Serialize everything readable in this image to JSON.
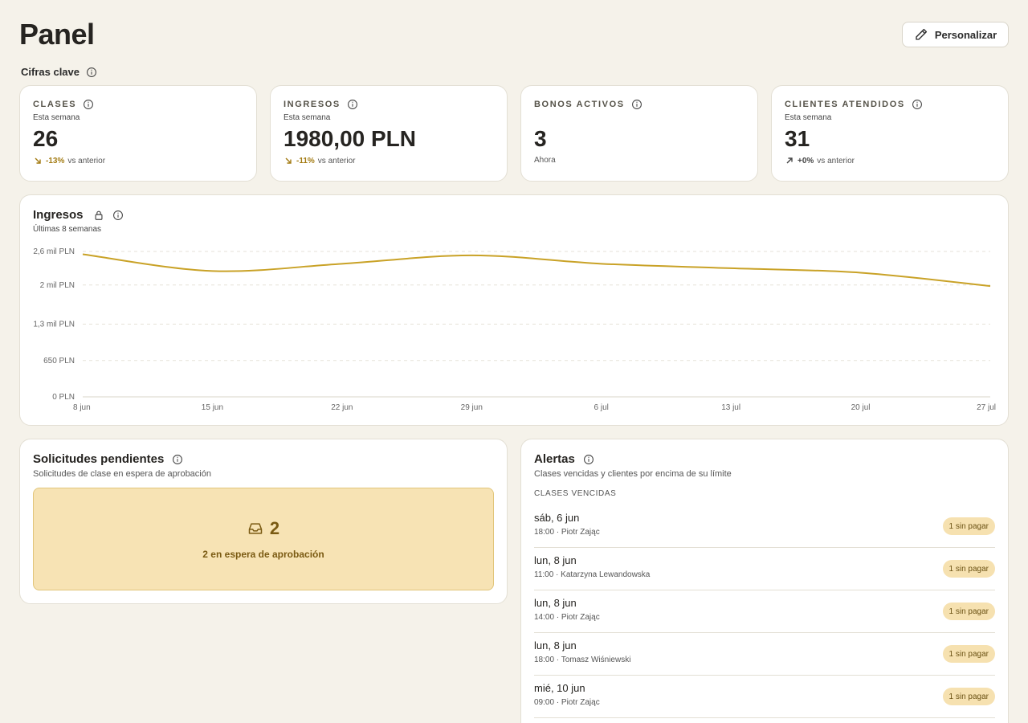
{
  "header": {
    "title": "Panel",
    "customize_label": "Personalizar"
  },
  "key_figures": {
    "label": "Cifras clave",
    "cards": [
      {
        "title": "CLASES",
        "subtitle": "Esta semana",
        "value": "26",
        "delta": "-13%",
        "delta_suffix": "vs anterior",
        "trend": "down"
      },
      {
        "title": "INGRESOS",
        "subtitle": "Esta semana",
        "value": "1980,00 PLN",
        "delta": "-11%",
        "delta_suffix": "vs anterior",
        "trend": "down"
      },
      {
        "title": "BONOS ACTIVOS",
        "subtitle": "",
        "value": "3",
        "note": "Ahora"
      },
      {
        "title": "CLIENTES ATENDIDOS",
        "subtitle": "Esta semana",
        "value": "31",
        "delta": "+0%",
        "delta_suffix": "vs anterior",
        "trend": "up"
      }
    ]
  },
  "revenue_chart": {
    "title": "Ingresos",
    "subtitle": "Últimas 8 semanas",
    "chart_data": {
      "type": "line",
      "x": [
        "8 jun",
        "15 jun",
        "22 jun",
        "29 jun",
        "6 jul",
        "13 jul",
        "20 jul",
        "27 jul"
      ],
      "series": [
        {
          "values": [
            2550,
            2250,
            2380,
            2530,
            2380,
            2300,
            2220,
            1980
          ]
        }
      ],
      "ylim": [
        0,
        2600
      ],
      "yticks": [
        0,
        650,
        1300,
        2000,
        2600
      ],
      "ytick_labels": [
        "0 PLN",
        "650 PLN",
        "1,3 mil PLN",
        "2 mil PLN",
        "2,6 mil PLN"
      ],
      "grid": true,
      "color": "#c9a227"
    }
  },
  "pending": {
    "title": "Solicitudes pendientes",
    "subtitle": "Solicitudes de clase en espera de aprobación",
    "count": "2",
    "text": "2 en espera de aprobación"
  },
  "alerts": {
    "title": "Alertas",
    "subtitle": "Clases vencidas y clientes por encima de su límite",
    "section_label": "CLASES VENCIDAS",
    "items": [
      {
        "date": "sáb, 6 jun",
        "meta": "18:00 · Piotr Zając",
        "badge": "1 sin pagar"
      },
      {
        "date": "lun, 8 jun",
        "meta": "11:00 · Katarzyna Lewandowska",
        "badge": "1 sin pagar"
      },
      {
        "date": "lun, 8 jun",
        "meta": "14:00 · Piotr Zając",
        "badge": "1 sin pagar"
      },
      {
        "date": "lun, 8 jun",
        "meta": "18:00 · Tomasz Wiśniewski",
        "badge": "1 sin pagar"
      },
      {
        "date": "mié, 10 jun",
        "meta": "09:00 · Piotr Zając",
        "badge": "1 sin pagar"
      }
    ]
  }
}
